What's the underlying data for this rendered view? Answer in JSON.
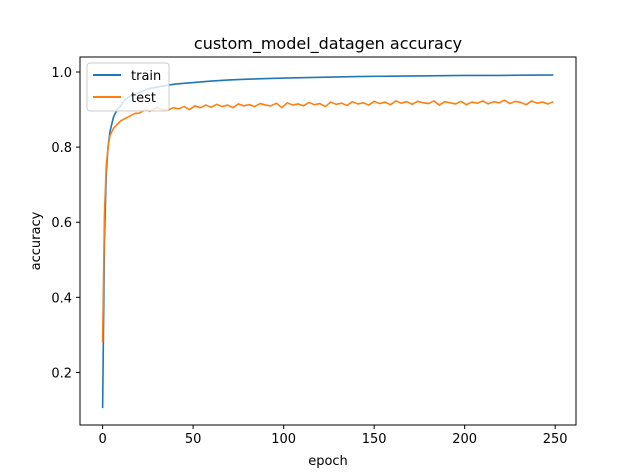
{
  "chart_data": {
    "type": "line",
    "title": "custom_model_datagen accuracy",
    "xlabel": "epoch",
    "ylabel": "accuracy",
    "xlim": [
      -12.5,
      261.5
    ],
    "ylim": [
      0.06,
      1.04
    ],
    "xticks": [
      0,
      50,
      100,
      150,
      200,
      250
    ],
    "xtick_labels": [
      "0",
      "50",
      "100",
      "150",
      "200",
      "250"
    ],
    "yticks": [
      0.2,
      0.4,
      0.6,
      0.8,
      1.0
    ],
    "ytick_labels": [
      "0.2",
      "0.4",
      "0.6",
      "0.8",
      "1.0"
    ],
    "legend": "top-left",
    "grid": false,
    "colors": {
      "train": "#1f77b4",
      "test": "#ff7f0e"
    },
    "series": [
      {
        "name": "train",
        "x": [
          0,
          1,
          2,
          3,
          4,
          5,
          6,
          8,
          10,
          12,
          15,
          20,
          25,
          30,
          40,
          50,
          60,
          70,
          80,
          100,
          120,
          140,
          160,
          180,
          200,
          220,
          240,
          249
        ],
        "values": [
          0.105,
          0.55,
          0.73,
          0.8,
          0.84,
          0.86,
          0.88,
          0.9,
          0.91,
          0.925,
          0.935,
          0.945,
          0.955,
          0.96,
          0.968,
          0.972,
          0.976,
          0.979,
          0.981,
          0.984,
          0.986,
          0.988,
          0.989,
          0.99,
          0.991,
          0.991,
          0.992,
          0.992
        ]
      },
      {
        "name": "test",
        "x": [
          0,
          1,
          2,
          3,
          4,
          5,
          6,
          7,
          8,
          10,
          12,
          14,
          16,
          18,
          20,
          22,
          24,
          26,
          28,
          30,
          33,
          36,
          39,
          42,
          45,
          48,
          51,
          54,
          57,
          60,
          63,
          66,
          69,
          72,
          75,
          78,
          81,
          84,
          87,
          90,
          93,
          96,
          99,
          102,
          105,
          108,
          111,
          114,
          117,
          120,
          123,
          126,
          129,
          132,
          135,
          138,
          141,
          144,
          147,
          150,
          153,
          156,
          159,
          162,
          165,
          168,
          171,
          174,
          177,
          180,
          183,
          186,
          189,
          192,
          195,
          198,
          201,
          204,
          207,
          210,
          213,
          216,
          219,
          222,
          225,
          228,
          231,
          234,
          237,
          240,
          243,
          246,
          249
        ],
        "values": [
          0.28,
          0.62,
          0.75,
          0.8,
          0.83,
          0.84,
          0.85,
          0.855,
          0.86,
          0.87,
          0.875,
          0.88,
          0.885,
          0.89,
          0.89,
          0.895,
          0.9,
          0.895,
          0.9,
          0.905,
          0.9,
          0.898,
          0.905,
          0.902,
          0.908,
          0.9,
          0.91,
          0.905,
          0.912,
          0.906,
          0.914,
          0.908,
          0.912,
          0.905,
          0.915,
          0.91,
          0.913,
          0.908,
          0.916,
          0.912,
          0.91,
          0.917,
          0.905,
          0.918,
          0.912,
          0.915,
          0.91,
          0.919,
          0.913,
          0.916,
          0.908,
          0.92,
          0.914,
          0.917,
          0.911,
          0.921,
          0.915,
          0.918,
          0.912,
          0.922,
          0.916,
          0.92,
          0.913,
          0.923,
          0.917,
          0.921,
          0.914,
          0.922,
          0.918,
          0.916,
          0.923,
          0.912,
          0.921,
          0.918,
          0.915,
          0.922,
          0.913,
          0.92,
          0.917,
          0.923,
          0.915,
          0.921,
          0.918,
          0.925,
          0.916,
          0.922,
          0.919,
          0.913,
          0.923,
          0.917,
          0.92,
          0.915,
          0.921
        ]
      }
    ]
  }
}
